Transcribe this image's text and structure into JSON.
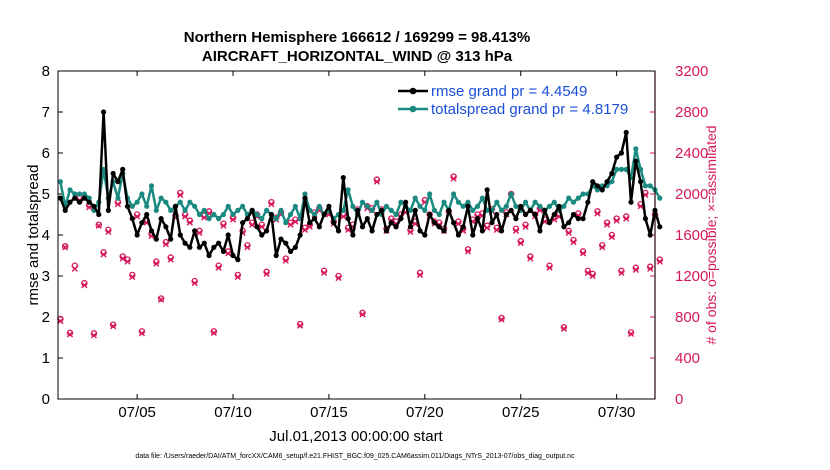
{
  "chart_data": {
    "type": "line",
    "title_line1": "Northern Hemisphere 166612 / 169299 = 98.413%",
    "title_line2": "AIRCRAFT_HORIZONTAL_WIND @ 313 hPa",
    "xlabel": "Jul.01,2013 00:00:00 start",
    "ylabel_left": "rmse and totalspread",
    "ylabel_right": "# of obs: o=possible; ×=assimilated",
    "footer": "data file: /Users/raeder/DAI/ATM_forcXX/CAM6_setup/f.e21.FHIST_BGC.f09_025.CAM6assim.011/Diags_NTrS_2013-07/obs_diag_output.nc",
    "xlim": [
      0.875,
      32
    ],
    "ylim_left": [
      0,
      8
    ],
    "ylim_right": [
      0,
      3200
    ],
    "yticks_left": [
      0,
      1,
      2,
      3,
      4,
      5,
      6,
      7,
      8
    ],
    "yticks_right": [
      0,
      400,
      800,
      1200,
      1600,
      2000,
      2400,
      2800,
      3200
    ],
    "xtick_positions": [
      5,
      10,
      15,
      20,
      25,
      30
    ],
    "xtick_labels": [
      "07/05",
      "07/10",
      "07/15",
      "07/20",
      "07/25",
      "07/30"
    ],
    "colors": {
      "rmse": "#000000",
      "totalspread": "#1a8a80",
      "obs": "#d6185d",
      "legend_text": "#1a4fd8"
    },
    "series": [
      {
        "name": "rmse grand pr = 4.4549",
        "values": [
          4.9,
          4.6,
          4.8,
          4.9,
          4.8,
          4.9,
          4.8,
          4.7,
          4.5,
          7.0,
          4.6,
          5.5,
          5.3,
          5.6,
          4.7,
          4.4,
          4.0,
          4.3,
          4.5,
          4.1,
          3.9,
          4.4,
          4.2,
          3.9,
          4.7,
          4.0,
          3.8,
          3.7,
          4.1,
          3.7,
          3.8,
          3.5,
          3.7,
          3.8,
          3.6,
          4.0,
          3.5,
          3.4,
          4.3,
          4.4,
          4.6,
          4.2,
          4.0,
          4.1,
          4.5,
          3.5,
          3.9,
          3.8,
          3.6,
          3.7,
          4.0,
          4.9,
          4.3,
          4.4,
          4.2,
          4.5,
          4.7,
          4.3,
          4.1,
          5.4,
          4.4,
          4.0,
          4.6,
          4.2,
          4.4,
          4.1,
          4.5,
          4.6,
          4.1,
          4.3,
          4.2,
          4.4,
          4.8,
          4.2,
          4.6,
          4.1,
          4.0,
          4.5,
          4.3,
          4.2,
          4.1,
          4.6,
          4.3,
          4.0,
          4.2,
          4.7,
          4.0,
          4.4,
          4.1,
          5.1,
          4.3,
          4.5,
          4.1,
          4.5,
          4.6,
          4.4,
          4.7,
          4.5,
          4.6,
          4.5,
          4.1,
          4.6,
          4.3,
          4.5,
          4.7,
          4.2,
          4.3,
          4.5,
          4.4,
          4.4,
          4.8,
          5.3,
          5.2,
          5.1,
          5.3,
          5.5,
          5.9,
          6.0,
          6.5,
          4.8,
          5.8,
          5.3,
          4.4,
          4.0,
          4.6,
          4.2
        ]
      },
      {
        "name": "totalspread grand pr = 4.8179",
        "values": [
          5.3,
          4.7,
          5.1,
          5.0,
          5.0,
          5.0,
          4.9,
          4.6,
          4.8,
          5.6,
          4.9,
          5.3,
          4.9,
          5.5,
          4.9,
          4.7,
          4.8,
          5.0,
          4.7,
          5.2,
          4.6,
          4.9,
          4.8,
          4.6,
          4.7,
          4.8,
          4.6,
          4.8,
          4.7,
          4.5,
          4.6,
          4.4,
          4.5,
          4.4,
          4.5,
          4.7,
          4.5,
          4.6,
          4.7,
          4.5,
          4.6,
          4.5,
          4.4,
          4.6,
          4.5,
          4.4,
          4.6,
          4.3,
          4.5,
          4.7,
          4.4,
          5.0,
          4.6,
          4.5,
          4.7,
          4.5,
          4.6,
          4.4,
          4.5,
          4.6,
          5.1,
          4.7,
          4.5,
          4.8,
          4.7,
          4.6,
          4.8,
          4.5,
          4.7,
          4.6,
          4.5,
          4.8,
          4.7,
          4.6,
          4.9,
          4.7,
          4.6,
          5.0,
          4.6,
          4.5,
          4.8,
          4.6,
          5.0,
          4.8,
          4.7,
          4.8,
          4.6,
          4.7,
          4.9,
          4.6,
          4.6,
          4.8,
          4.6,
          4.7,
          5.0,
          4.7,
          4.6,
          4.8,
          4.6,
          4.8,
          4.7,
          4.6,
          4.7,
          4.8,
          4.6,
          4.7,
          4.9,
          4.8,
          4.9,
          5.0,
          5.0,
          5.2,
          5.1,
          5.2,
          5.2,
          5.3,
          5.6,
          5.6,
          5.6,
          5.4,
          6.1,
          5.6,
          5.2,
          5.2,
          5.1,
          4.9
        ]
      }
    ],
    "obs_possible": [
      780,
      1490,
      645,
      1300,
      1960,
      1130,
      1890,
      640,
      1700,
      1430,
      1650,
      725,
      1920,
      1390,
      1360,
      1210,
      1800,
      660,
      1740,
      1610,
      1340,
      980,
      1530,
      1380,
      1790,
      2010,
      1800,
      1740,
      1150,
      1640,
      1790,
      1830,
      660,
      1300,
      1710,
      1440,
      1770,
      1210,
      1640,
      1500,
      1720,
      1800,
      1700,
      1240,
      1920,
      1770,
      1820,
      1370,
      1720,
      1750,
      730,
      1670,
      1700,
      1820,
      1860,
      1250,
      1820,
      1730,
      1200,
      1800,
      1670,
      1700,
      1850,
      840,
      1880,
      1860,
      2140,
      1850,
      1660,
      1760,
      1730,
      1800,
      1840,
      1650,
      1730,
      1230,
      1940,
      1800,
      1730,
      1720,
      1660,
      1830,
      2170,
      1730,
      1660,
      1460,
      1750,
      1800,
      1810,
      1690,
      1850,
      1670,
      790,
      1820,
      2000,
      1660,
      1540,
      1700,
      1390,
      1800,
      1860,
      1750,
      1300,
      1770,
      1800,
      700,
      1640,
      1550,
      1810,
      1440,
      1250,
      1220,
      1830,
      1500,
      1720,
      1600,
      1760,
      1250,
      1780,
      650,
      1280,
      1900,
      2010,
      1290,
      1800,
      1360
    ],
    "obs_assimilated": [
      760,
      1480,
      630,
      1270,
      1940,
      1110,
      1870,
      620,
      1690,
      1410,
      1630,
      710,
      1900,
      1370,
      1340,
      1190,
      1780,
      640,
      1720,
      1590,
      1320,
      970,
      1510,
      1360,
      1770,
      1990,
      1780,
      1720,
      1130,
      1620,
      1770,
      1810,
      645,
      1280,
      1690,
      1420,
      1750,
      1190,
      1620,
      1480,
      1700,
      1780,
      1680,
      1220,
      1900,
      1750,
      1800,
      1350,
      1700,
      1730,
      715,
      1650,
      1680,
      1800,
      1840,
      1230,
      1800,
      1710,
      1180,
      1780,
      1650,
      1680,
      1830,
      825,
      1860,
      1840,
      2120,
      1830,
      1640,
      1740,
      1710,
      1780,
      1820,
      1630,
      1710,
      1210,
      1920,
      1780,
      1710,
      1700,
      1640,
      1810,
      2150,
      1710,
      1640,
      1440,
      1730,
      1780,
      1790,
      1670,
      1830,
      1650,
      775,
      1800,
      1980,
      1640,
      1520,
      1680,
      1370,
      1780,
      1840,
      1730,
      1280,
      1750,
      1780,
      685,
      1620,
      1530,
      1790,
      1420,
      1230,
      1200,
      1810,
      1480,
      1700,
      1580,
      1740,
      1230,
      1760,
      635,
      1260,
      1880,
      1990,
      1270,
      1780,
      1340
    ]
  }
}
